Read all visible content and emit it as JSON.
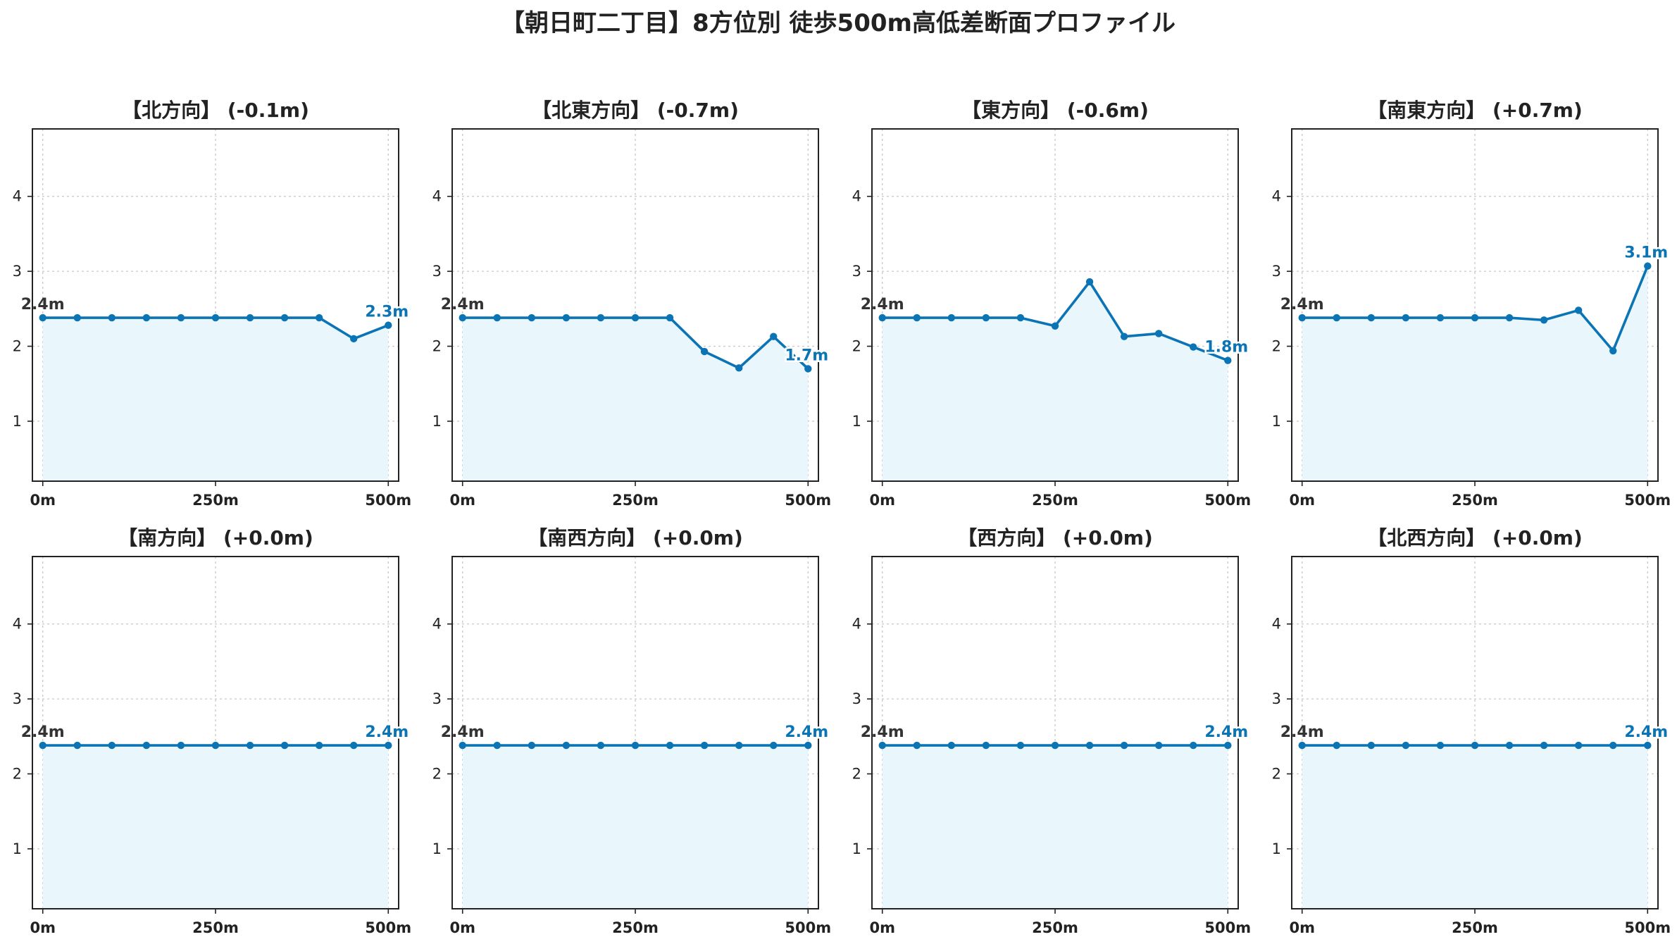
{
  "title": "【朝日町二丁目】8方位別 徒歩500m高低差断面プロファイル",
  "colors": {
    "line": "#0b74b5",
    "fill": "#e9f6fc",
    "start_label": "#333333",
    "end_label": "#0b74b5"
  },
  "chart_data": [
    {
      "type": "area",
      "title": "【北方向】 (-0.1m)",
      "x": [
        0,
        50,
        100,
        150,
        200,
        250,
        300,
        350,
        400,
        450,
        500
      ],
      "values": [
        2.38,
        2.38,
        2.38,
        2.38,
        2.38,
        2.38,
        2.38,
        2.38,
        2.38,
        2.1,
        2.28
      ],
      "start_label": "2.4m",
      "end_label": "2.3m",
      "xlim": [
        -15,
        515
      ],
      "ylim": [
        0.2,
        4.9
      ],
      "x_ticks": [
        0,
        250,
        500
      ],
      "x_tick_labels": [
        "0m",
        "250m",
        "500m"
      ],
      "y_ticks": [
        1,
        2,
        3,
        4
      ],
      "grid": true
    },
    {
      "type": "area",
      "title": "【北東方向】 (-0.7m)",
      "x": [
        0,
        50,
        100,
        150,
        200,
        250,
        300,
        350,
        400,
        450,
        500
      ],
      "values": [
        2.38,
        2.38,
        2.38,
        2.38,
        2.38,
        2.38,
        2.38,
        1.93,
        1.71,
        2.13,
        1.7
      ],
      "start_label": "2.4m",
      "end_label": "1.7m",
      "xlim": [
        -15,
        515
      ],
      "ylim": [
        0.2,
        4.9
      ],
      "x_ticks": [
        0,
        250,
        500
      ],
      "x_tick_labels": [
        "0m",
        "250m",
        "500m"
      ],
      "y_ticks": [
        1,
        2,
        3,
        4
      ],
      "grid": true
    },
    {
      "type": "area",
      "title": "【東方向】 (-0.6m)",
      "x": [
        0,
        50,
        100,
        150,
        200,
        250,
        300,
        350,
        400,
        450,
        500
      ],
      "values": [
        2.38,
        2.38,
        2.38,
        2.38,
        2.38,
        2.27,
        2.86,
        2.13,
        2.17,
        1.99,
        1.81
      ],
      "start_label": "2.4m",
      "end_label": "1.8m",
      "xlim": [
        -15,
        515
      ],
      "ylim": [
        0.2,
        4.9
      ],
      "x_ticks": [
        0,
        250,
        500
      ],
      "x_tick_labels": [
        "0m",
        "250m",
        "500m"
      ],
      "y_ticks": [
        1,
        2,
        3,
        4
      ],
      "grid": true
    },
    {
      "type": "area",
      "title": "【南東方向】 (+0.7m)",
      "x": [
        0,
        50,
        100,
        150,
        200,
        250,
        300,
        350,
        400,
        450,
        500
      ],
      "values": [
        2.38,
        2.38,
        2.38,
        2.38,
        2.38,
        2.38,
        2.38,
        2.35,
        2.48,
        1.94,
        3.07
      ],
      "start_label": "2.4m",
      "end_label": "3.1m",
      "xlim": [
        -15,
        515
      ],
      "ylim": [
        0.2,
        4.9
      ],
      "x_ticks": [
        0,
        250,
        500
      ],
      "x_tick_labels": [
        "0m",
        "250m",
        "500m"
      ],
      "y_ticks": [
        1,
        2,
        3,
        4
      ],
      "grid": true
    },
    {
      "type": "area",
      "title": "【南方向】 (+0.0m)",
      "x": [
        0,
        50,
        100,
        150,
        200,
        250,
        300,
        350,
        400,
        450,
        500
      ],
      "values": [
        2.38,
        2.38,
        2.38,
        2.38,
        2.38,
        2.38,
        2.38,
        2.38,
        2.38,
        2.38,
        2.38
      ],
      "start_label": "2.4m",
      "end_label": "2.4m",
      "xlim": [
        -15,
        515
      ],
      "ylim": [
        0.2,
        4.9
      ],
      "x_ticks": [
        0,
        250,
        500
      ],
      "x_tick_labels": [
        "0m",
        "250m",
        "500m"
      ],
      "y_ticks": [
        1,
        2,
        3,
        4
      ],
      "grid": true
    },
    {
      "type": "area",
      "title": "【南西方向】 (+0.0m)",
      "x": [
        0,
        50,
        100,
        150,
        200,
        250,
        300,
        350,
        400,
        450,
        500
      ],
      "values": [
        2.38,
        2.38,
        2.38,
        2.38,
        2.38,
        2.38,
        2.38,
        2.38,
        2.38,
        2.38,
        2.38
      ],
      "start_label": "2.4m",
      "end_label": "2.4m",
      "xlim": [
        -15,
        515
      ],
      "ylim": [
        0.2,
        4.9
      ],
      "x_ticks": [
        0,
        250,
        500
      ],
      "x_tick_labels": [
        "0m",
        "250m",
        "500m"
      ],
      "y_ticks": [
        1,
        2,
        3,
        4
      ],
      "grid": true
    },
    {
      "type": "area",
      "title": "【西方向】 (+0.0m)",
      "x": [
        0,
        50,
        100,
        150,
        200,
        250,
        300,
        350,
        400,
        450,
        500
      ],
      "values": [
        2.38,
        2.38,
        2.38,
        2.38,
        2.38,
        2.38,
        2.38,
        2.38,
        2.38,
        2.38,
        2.38
      ],
      "start_label": "2.4m",
      "end_label": "2.4m",
      "xlim": [
        -15,
        515
      ],
      "ylim": [
        0.2,
        4.9
      ],
      "x_ticks": [
        0,
        250,
        500
      ],
      "x_tick_labels": [
        "0m",
        "250m",
        "500m"
      ],
      "y_ticks": [
        1,
        2,
        3,
        4
      ],
      "grid": true
    },
    {
      "type": "area",
      "title": "【北西方向】 (+0.0m)",
      "x": [
        0,
        50,
        100,
        150,
        200,
        250,
        300,
        350,
        400,
        450,
        500
      ],
      "values": [
        2.38,
        2.38,
        2.38,
        2.38,
        2.38,
        2.38,
        2.38,
        2.38,
        2.38,
        2.38,
        2.38
      ],
      "start_label": "2.4m",
      "end_label": "2.4m",
      "xlim": [
        -15,
        515
      ],
      "ylim": [
        0.2,
        4.9
      ],
      "x_ticks": [
        0,
        250,
        500
      ],
      "x_tick_labels": [
        "0m",
        "250m",
        "500m"
      ],
      "y_ticks": [
        1,
        2,
        3,
        4
      ],
      "grid": true
    }
  ]
}
